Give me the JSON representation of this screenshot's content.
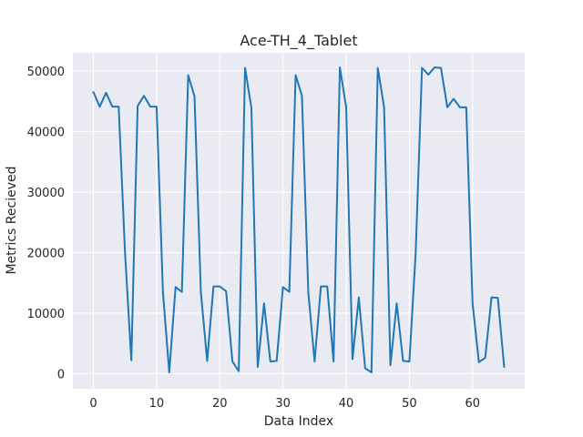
{
  "chart_data": {
    "type": "line",
    "title": "Ace-TH_4_Tablet",
    "xlabel": "Data Index",
    "ylabel": "Metrics Recieved",
    "xlim": [
      -3.25,
      68.25
    ],
    "ylim": [
      -2500,
      53000
    ],
    "grid": true,
    "background": "#eaeaf2",
    "x_ticks": [
      0,
      10,
      20,
      30,
      40,
      50,
      60
    ],
    "y_ticks": [
      0,
      10000,
      20000,
      30000,
      40000,
      50000
    ],
    "series": [
      {
        "color": "#1f77b4",
        "x": [
          0,
          1,
          2,
          3,
          4,
          5,
          6,
          7,
          8,
          9,
          10,
          11,
          12,
          13,
          14,
          15,
          16,
          17,
          18,
          19,
          20,
          21,
          22,
          23,
          24,
          25,
          26,
          27,
          28,
          29,
          30,
          31,
          32,
          33,
          34,
          35,
          36,
          37,
          38,
          39,
          40,
          41,
          42,
          43,
          44,
          45,
          46,
          47,
          48,
          49,
          50,
          51,
          52,
          53,
          54,
          55,
          56,
          57,
          58,
          59,
          60,
          61,
          62,
          63,
          64,
          65
        ],
        "values": [
          46500,
          44100,
          46400,
          44100,
          44100,
          20000,
          2200,
          44200,
          45900,
          44100,
          44100,
          13500,
          200,
          14300,
          13500,
          49300,
          45800,
          13500,
          2100,
          14400,
          14400,
          13600,
          2000,
          400,
          50500,
          43900,
          1100,
          11600,
          2000,
          2100,
          14300,
          13500,
          49300,
          45900,
          13500,
          2000,
          14400,
          14400,
          2000,
          50600,
          44000,
          2400,
          12600,
          900,
          200,
          50500,
          44000,
          1400,
          11600,
          2100,
          2000,
          20000,
          50500,
          49400,
          50600,
          50500,
          44000,
          45400,
          44000,
          44000,
          11600,
          1900,
          2600,
          12600,
          12500,
          1100
        ]
      }
    ]
  }
}
